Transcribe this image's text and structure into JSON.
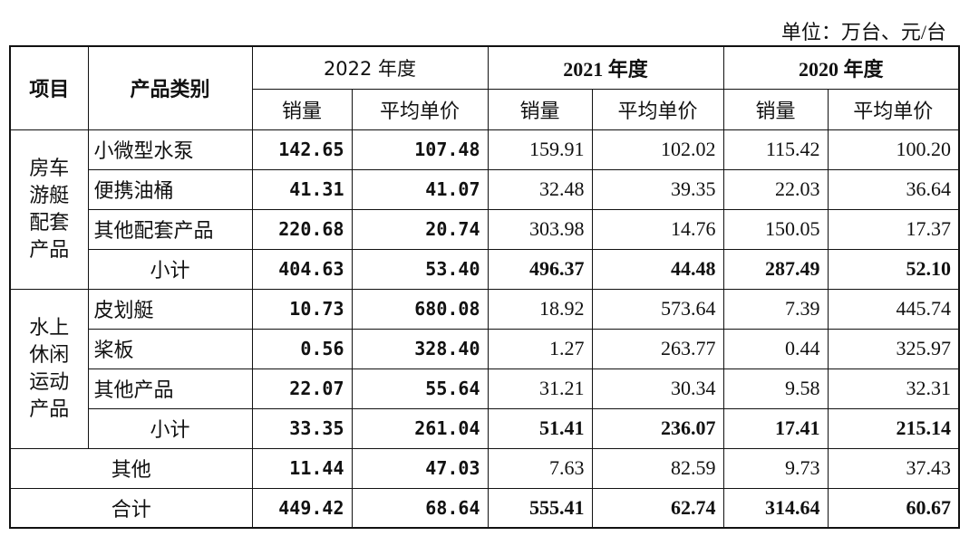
{
  "unit": "单位：万台、元/台",
  "table": {
    "header": {
      "item": "项目",
      "category": "产品类别",
      "years": [
        {
          "label": "2022 年度",
          "qty": "销量",
          "price": "平均单价"
        },
        {
          "label": "2021 年度",
          "qty": "销量",
          "price": "平均单价"
        },
        {
          "label": "2020 年度",
          "qty": "销量",
          "price": "平均单价"
        }
      ]
    },
    "groups": [
      {
        "label": "房车游艇配套产品",
        "rows": [
          {
            "name": "小微型水泵",
            "values": [
              "142.65",
              "107.48",
              "159.91",
              "102.02",
              "115.42",
              "100.20"
            ]
          },
          {
            "name": "便携油桶",
            "values": [
              "41.31",
              "41.07",
              "32.48",
              "39.35",
              "22.03",
              "36.64"
            ]
          },
          {
            "name": "其他配套产品",
            "values": [
              "220.68",
              "20.74",
              "303.98",
              "14.76",
              "150.05",
              "17.37"
            ]
          }
        ],
        "subtotal": {
          "name": "小计",
          "values": [
            "404.63",
            "53.40",
            "496.37",
            "44.48",
            "287.49",
            "52.10"
          ]
        }
      },
      {
        "label": "水上休闲运动产品",
        "rows": [
          {
            "name": "皮划艇",
            "values": [
              "10.73",
              "680.08",
              "18.92",
              "573.64",
              "7.39",
              "445.74"
            ]
          },
          {
            "name": "桨板",
            "values": [
              "0.56",
              "328.40",
              "1.27",
              "263.77",
              "0.44",
              "325.97"
            ]
          },
          {
            "name": "其他产品",
            "values": [
              "22.07",
              "55.64",
              "31.21",
              "30.34",
              "9.58",
              "32.31"
            ]
          }
        ],
        "subtotal": {
          "name": "小计",
          "values": [
            "33.35",
            "261.04",
            "51.41",
            "236.07",
            "17.41",
            "215.14"
          ]
        }
      }
    ],
    "other": {
      "name": "其他",
      "values": [
        "11.44",
        "47.03",
        "7.63",
        "82.59",
        "9.73",
        "37.43"
      ]
    },
    "total": {
      "name": "合计",
      "values": [
        "449.42",
        "68.64",
        "555.41",
        "62.74",
        "314.64",
        "60.67"
      ]
    }
  }
}
